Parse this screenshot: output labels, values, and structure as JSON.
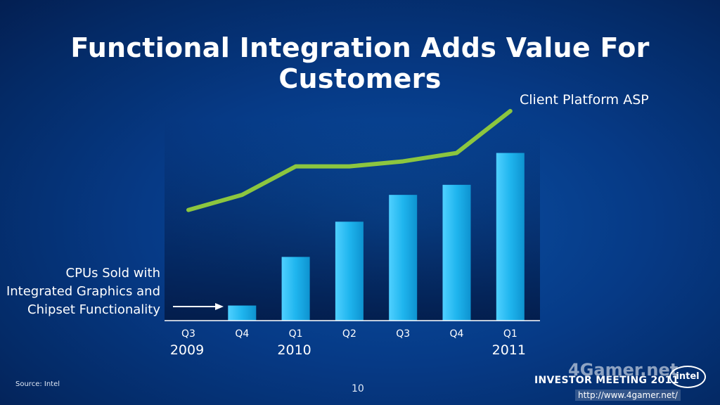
{
  "slide": {
    "title": "Functional Integration Adds Value For Customers",
    "source": "Source: Intel",
    "page_number": "10",
    "footer": "INVESTOR MEETING 2011",
    "logo_text": "intel",
    "watermark": "4Gamer.net",
    "watermark_url": "http://www.4gamer.net/"
  },
  "colors": {
    "bar": "#1fb5ee",
    "line": "#8cc63f",
    "background": "#063a86"
  },
  "chart_data": {
    "type": "bar",
    "title": "Functional Integration Adds Value For Customers",
    "categories": [
      "Q3",
      "Q4",
      "Q1",
      "Q2",
      "Q3",
      "Q4",
      "Q1"
    ],
    "year_labels": [
      {
        "index": 0,
        "label": "2009"
      },
      {
        "index": 2,
        "label": "2010"
      },
      {
        "index": 6,
        "label": "2011"
      }
    ],
    "series": [
      {
        "name": "CPUs Sold with Integrated Graphics and Chipset Functionality",
        "type": "bar",
        "values": [
          0,
          9,
          38,
          59,
          75,
          81,
          100
        ]
      },
      {
        "name": "Client Platform ASP",
        "type": "line",
        "values": [
          66,
          75,
          92,
          92,
          95,
          100,
          125
        ]
      }
    ],
    "annotation": "CPUs Sold with Integrated Graphics and Chipset Functionality",
    "annotation_lines": [
      "CPUs Sold with",
      "Integrated Graphics and",
      "Chipset Functionality"
    ],
    "ylim": [
      0,
      130
    ],
    "grid": false,
    "legend": "labels placed on chart"
  }
}
